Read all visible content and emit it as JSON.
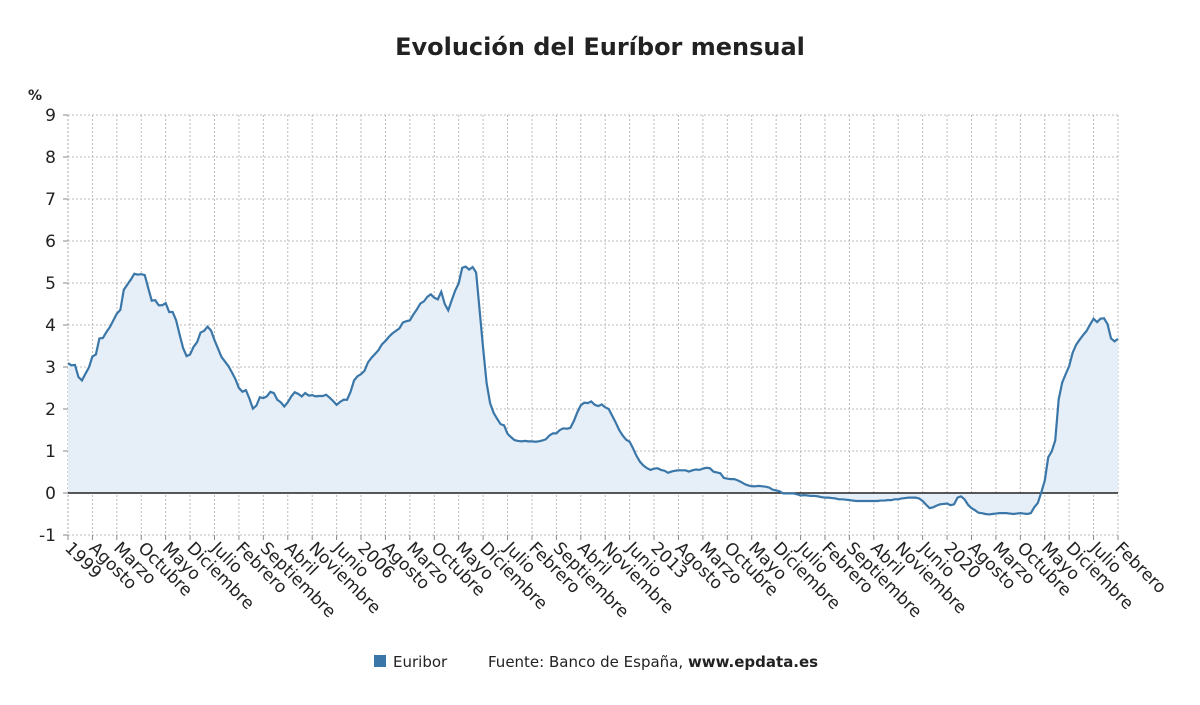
{
  "chart_data": {
    "type": "line",
    "title": "Evolución del Euríbor mensual",
    "y_label": "%",
    "source": "Fuente: Banco de España,",
    "source_site": "www.epdata.es",
    "categories": [
      "1999",
      null,
      null,
      null,
      null,
      null,
      null,
      "Agosto",
      null,
      null,
      null,
      null,
      null,
      null,
      "Marzo",
      null,
      null,
      null,
      null,
      null,
      null,
      "Octubre",
      null,
      null,
      null,
      null,
      null,
      null,
      "Mayo",
      null,
      null,
      null,
      null,
      null,
      null,
      "Diciembre",
      null,
      null,
      null,
      null,
      null,
      null,
      "Julio",
      null,
      null,
      null,
      null,
      null,
      null,
      "Febrero",
      null,
      null,
      null,
      null,
      null,
      null,
      "Septiembre",
      null,
      null,
      null,
      null,
      null,
      null,
      "Abril",
      null,
      null,
      null,
      null,
      null,
      null,
      "Noviembre",
      null,
      null,
      null,
      null,
      null,
      null,
      "Junio",
      null,
      null,
      null,
      null,
      null,
      null,
      "2006",
      null,
      null,
      null,
      null,
      null,
      null,
      "Agosto",
      null,
      null,
      null,
      null,
      null,
      null,
      "Marzo",
      null,
      null,
      null,
      null,
      null,
      null,
      "Octubre",
      null,
      null,
      null,
      null,
      null,
      null,
      "Mayo",
      null,
      null,
      null,
      null,
      null,
      null,
      "Diciembre",
      null,
      null,
      null,
      null,
      null,
      null,
      "Julio",
      null,
      null,
      null,
      null,
      null,
      null,
      "Febrero",
      null,
      null,
      null,
      null,
      null,
      null,
      "Septiembre",
      null,
      null,
      null,
      null,
      null,
      null,
      "Abril",
      null,
      null,
      null,
      null,
      null,
      null,
      "Noviembre",
      null,
      null,
      null,
      null,
      null,
      null,
      "Junio",
      null,
      null,
      null,
      null,
      null,
      null,
      "2013",
      null,
      null,
      null,
      null,
      null,
      null,
      "Agosto",
      null,
      null,
      null,
      null,
      null,
      null,
      "Marzo",
      null,
      null,
      null,
      null,
      null,
      null,
      "Octubre",
      null,
      null,
      null,
      null,
      null,
      null,
      "Mayo",
      null,
      null,
      null,
      null,
      null,
      null,
      "Diciembre",
      null,
      null,
      null,
      null,
      null,
      null,
      "Julio",
      null,
      null,
      null,
      null,
      null,
      null,
      "Febrero",
      null,
      null,
      null,
      null,
      null,
      null,
      "Septiembre",
      null,
      null,
      null,
      null,
      null,
      null,
      "Abril",
      null,
      null,
      null,
      null,
      null,
      null,
      "Noviembre",
      null,
      null,
      null,
      null,
      null,
      null,
      "Junio",
      null,
      null,
      null,
      null,
      null,
      null,
      "2020",
      null,
      null,
      null,
      null,
      null,
      null,
      "Agosto",
      null,
      null,
      null,
      null,
      null,
      null,
      "Marzo",
      null,
      null,
      null,
      null,
      null,
      null,
      "Octubre",
      null,
      null,
      null,
      null,
      null,
      null,
      "Mayo",
      null,
      null,
      null,
      null,
      null,
      null,
      "Diciembre",
      null,
      null,
      null,
      null,
      null,
      null,
      "Julio",
      null,
      null,
      null,
      null,
      null,
      null,
      "Febrero"
    ],
    "series": [
      {
        "name": "Euribor",
        "color": "#3a77a8",
        "values": [
          3.09,
          3.04,
          3.05,
          2.76,
          2.68,
          2.84,
          2.99,
          3.25,
          3.3,
          3.68,
          3.69,
          3.83,
          3.95,
          4.11,
          4.27,
          4.36,
          4.84,
          4.96,
          5.08,
          5.22,
          5.2,
          5.21,
          5.19,
          4.88,
          4.58,
          4.59,
          4.47,
          4.47,
          4.52,
          4.31,
          4.31,
          4.11,
          3.77,
          3.45,
          3.26,
          3.3,
          3.48,
          3.59,
          3.82,
          3.86,
          3.96,
          3.87,
          3.64,
          3.44,
          3.24,
          3.13,
          3.02,
          2.87,
          2.71,
          2.5,
          2.41,
          2.45,
          2.25,
          2.01,
          2.08,
          2.28,
          2.26,
          2.3,
          2.41,
          2.38,
          2.22,
          2.16,
          2.06,
          2.16,
          2.3,
          2.4,
          2.36,
          2.3,
          2.38,
          2.32,
          2.33,
          2.3,
          2.31,
          2.31,
          2.34,
          2.27,
          2.19,
          2.1,
          2.17,
          2.22,
          2.22,
          2.41,
          2.68,
          2.78,
          2.83,
          2.91,
          3.11,
          3.22,
          3.31,
          3.4,
          3.54,
          3.62,
          3.72,
          3.8,
          3.86,
          3.92,
          4.06,
          4.09,
          4.11,
          4.25,
          4.37,
          4.51,
          4.56,
          4.67,
          4.73,
          4.65,
          4.61,
          4.79,
          4.5,
          4.35,
          4.59,
          4.82,
          4.99,
          5.36,
          5.39,
          5.32,
          5.38,
          5.25,
          4.35,
          3.45,
          2.62,
          2.14,
          1.91,
          1.77,
          1.64,
          1.61,
          1.41,
          1.33,
          1.26,
          1.24,
          1.23,
          1.24,
          1.23,
          1.23,
          1.22,
          1.23,
          1.25,
          1.28,
          1.37,
          1.42,
          1.42,
          1.5,
          1.54,
          1.53,
          1.55,
          1.71,
          1.92,
          2.09,
          2.15,
          2.14,
          2.18,
          2.1,
          2.07,
          2.11,
          2.04,
          2.0,
          1.84,
          1.68,
          1.5,
          1.37,
          1.27,
          1.22,
          1.06,
          0.88,
          0.74,
          0.65,
          0.59,
          0.55,
          0.58,
          0.59,
          0.55,
          0.53,
          0.48,
          0.51,
          0.53,
          0.54,
          0.54,
          0.54,
          0.51,
          0.54,
          0.56,
          0.55,
          0.58,
          0.6,
          0.59,
          0.51,
          0.49,
          0.47,
          0.36,
          0.34,
          0.33,
          0.33,
          0.3,
          0.26,
          0.21,
          0.18,
          0.16,
          0.16,
          0.17,
          0.16,
          0.15,
          0.13,
          0.08,
          0.06,
          0.04,
          -0.01,
          -0.01,
          -0.01,
          -0.01,
          -0.03,
          -0.06,
          -0.05,
          -0.06,
          -0.07,
          -0.07,
          -0.08,
          -0.1,
          -0.11,
          -0.11,
          -0.12,
          -0.13,
          -0.15,
          -0.15,
          -0.16,
          -0.17,
          -0.18,
          -0.19,
          -0.19,
          -0.19,
          -0.19,
          -0.19,
          -0.19,
          -0.19,
          -0.18,
          -0.18,
          -0.17,
          -0.17,
          -0.15,
          -0.15,
          -0.13,
          -0.12,
          -0.11,
          -0.11,
          -0.11,
          -0.13,
          -0.19,
          -0.28,
          -0.36,
          -0.34,
          -0.3,
          -0.27,
          -0.26,
          -0.25,
          -0.29,
          -0.27,
          -0.11,
          -0.08,
          -0.15,
          -0.28,
          -0.36,
          -0.41,
          -0.47,
          -0.48,
          -0.5,
          -0.51,
          -0.5,
          -0.49,
          -0.48,
          -0.48,
          -0.48,
          -0.49,
          -0.5,
          -0.49,
          -0.48,
          -0.49,
          -0.5,
          -0.48,
          -0.34,
          -0.24,
          0.01,
          0.29,
          0.85,
          0.99,
          1.25,
          2.23,
          2.63,
          2.83,
          3.02,
          3.34,
          3.53,
          3.65,
          3.76,
          3.86,
          4.01,
          4.15,
          4.07,
          4.15,
          4.16,
          4.02,
          3.68,
          3.61,
          3.67
        ]
      }
    ],
    "ylim": [
      -1,
      9
    ],
    "yticks": [
      9,
      8,
      7,
      6,
      5,
      4,
      3,
      2,
      1,
      0,
      -1
    ],
    "grid": true,
    "area_color": "#e6eef7"
  }
}
